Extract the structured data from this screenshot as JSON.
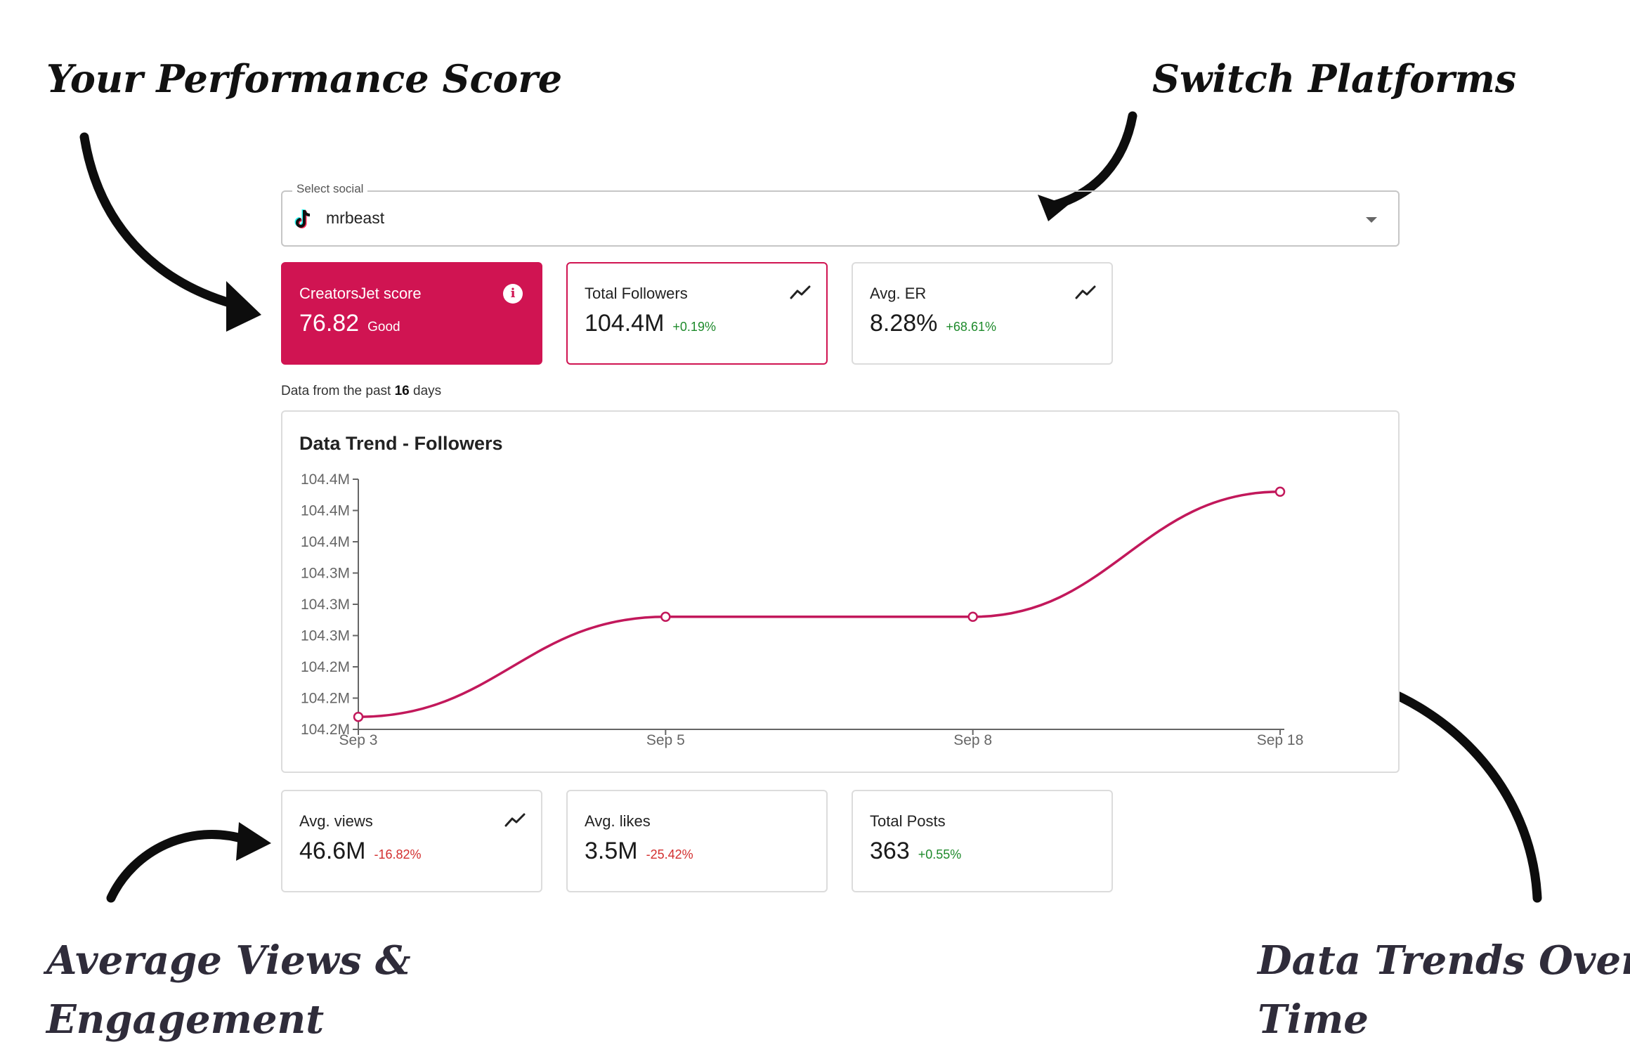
{
  "annotations": {
    "performance": "Your Performance Score",
    "switch": "Switch Platforms",
    "views_line1": "Average Views &",
    "views_line2": "Engagement",
    "trends_line1": "Data Trends Over",
    "trends_line2": "Time"
  },
  "select": {
    "legend": "Select social",
    "value": "mrbeast",
    "icon": "tiktok-icon"
  },
  "cards_top": {
    "score": {
      "label": "CreatorsJet score",
      "value": "76.82",
      "sub": "Good",
      "icon": "info-icon"
    },
    "followers": {
      "label": "Total Followers",
      "value": "104.4M",
      "delta": "+0.19%",
      "icon": "trend-up-icon"
    },
    "er": {
      "label": "Avg. ER",
      "value": "8.28%",
      "delta": "+68.61%",
      "icon": "trend-up-icon"
    }
  },
  "note": {
    "prefix": "Data from the past ",
    "days": "16",
    "suffix": " days"
  },
  "chart": {
    "title": "Data Trend - Followers"
  },
  "chart_data": {
    "type": "line",
    "title": "Data Trend - Followers",
    "x": [
      "Sep 3",
      "Sep 5",
      "Sep 8",
      "Sep 18"
    ],
    "y_tick_labels": [
      "104.4M",
      "104.4M",
      "104.4M",
      "104.3M",
      "104.3M",
      "104.3M",
      "104.2M",
      "104.2M",
      "104.2M"
    ],
    "series": [
      {
        "values": [
          104.21,
          104.29,
          104.29,
          104.39
        ],
        "color": "#c2185b"
      }
    ],
    "ylim": [
      104.2,
      104.4
    ],
    "grid": false
  },
  "cards_bottom": {
    "views": {
      "label": "Avg. views",
      "value": "46.6M",
      "delta": "-16.82%",
      "icon": "trend-up-icon"
    },
    "likes": {
      "label": "Avg. likes",
      "value": "3.5M",
      "delta": "-25.42%"
    },
    "posts": {
      "label": "Total Posts",
      "value": "363",
      "delta": "+0.55%"
    }
  },
  "colors": {
    "accent": "#d01452",
    "positive": "#1e8a2b",
    "negative": "#d32f2f",
    "line": "#c2185b"
  }
}
